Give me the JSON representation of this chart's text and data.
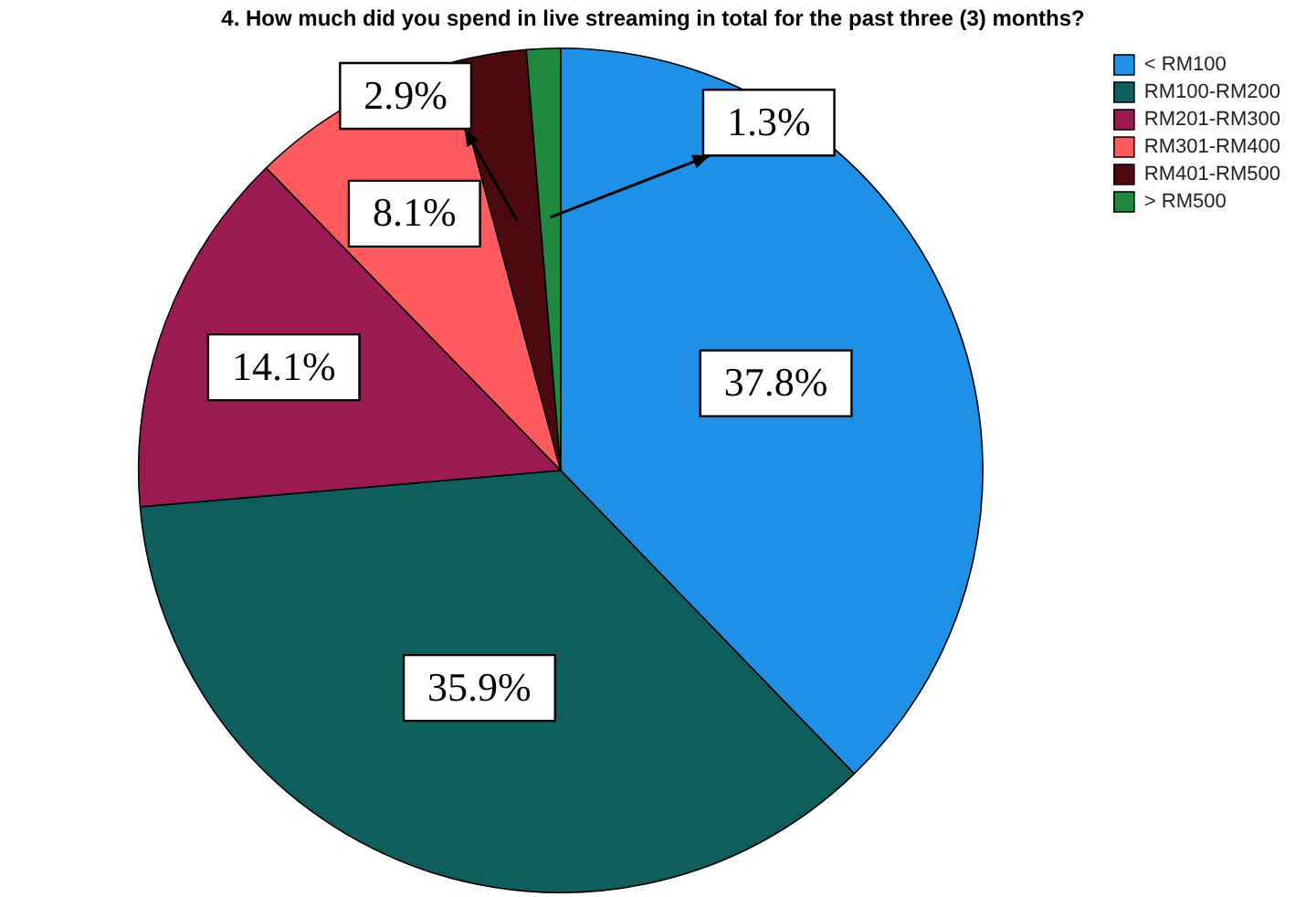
{
  "chart_data": {
    "type": "pie",
    "title": "4. How much did you spend in live streaming in total for the past three (3) months?",
    "categories": [
      "< RM100",
      "RM100-RM200",
      "RM201-RM300",
      "RM301-RM400",
      "RM401-RM500",
      "> RM500"
    ],
    "values": [
      37.8,
      35.9,
      14.1,
      8.1,
      2.9,
      1.3
    ],
    "colors": [
      "#1e90e6",
      "#0e5e5e",
      "#9c1a52",
      "#ff5a5e",
      "#4d0a0e",
      "#1f8a3e"
    ],
    "value_labels": [
      "37.8%",
      "35.9%",
      "14.1%",
      "8.1%",
      "2.9%",
      "1.3%"
    ],
    "legend": "top right"
  }
}
